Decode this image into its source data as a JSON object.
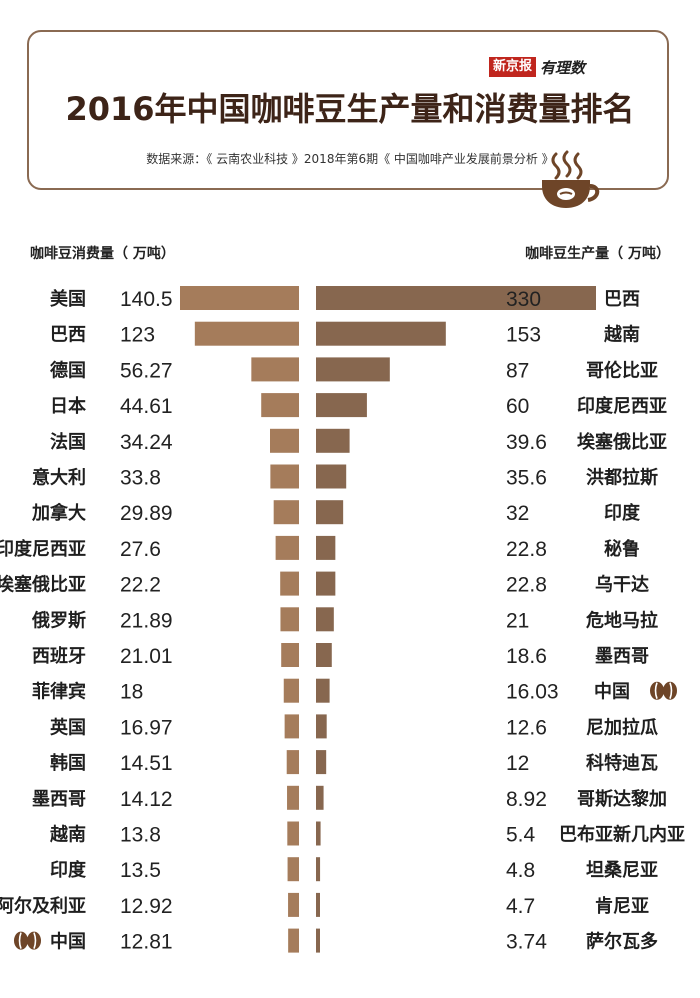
{
  "header": {
    "brand_name": "新京报",
    "brand_script": "有理数",
    "title": "2016年中国咖啡豆生产量和消费量排名",
    "source": "数据来源：《 云南农业科技 》2018年第6期《 中国咖啡产业发展前景分析 》"
  },
  "colors": {
    "border": "#8a6a52",
    "title": "#3d2418",
    "brand_red": "#c0261e",
    "consumption_bar": "#a57c5b",
    "production_bar": "#87674f",
    "bean": "#6e4528"
  },
  "icons": [
    "coffee-cup-icon",
    "coffee-bean-icon"
  ],
  "chart_data": {
    "type": "bar",
    "layout": "back-to-back horizontal",
    "consumption": {
      "label": "咖啡豆消费量（ 万吨）",
      "countries": [
        "美国",
        "巴西",
        "德国",
        "日本",
        "法国",
        "意大利",
        "加拿大",
        "印度尼西亚",
        "埃塞俄比亚",
        "俄罗斯",
        "西班牙",
        "菲律宾",
        "英国",
        "韩国",
        "墨西哥",
        "越南",
        "印度",
        "阿尔及利亚",
        "中国"
      ],
      "value_labels": [
        "140.5",
        "123",
        "56.27",
        "44.61",
        "34.24",
        "33.8",
        "29.89",
        "27.6",
        "22.2",
        "21.89",
        "21.01",
        "18",
        "16.97",
        "14.51",
        "14.12",
        "13.8",
        "13.5",
        "12.92",
        "12.81"
      ],
      "values": [
        140.5,
        123,
        56.27,
        44.61,
        34.24,
        33.8,
        29.89,
        27.6,
        22.2,
        21.89,
        21.01,
        18,
        16.97,
        14.51,
        14.12,
        13.8,
        13.5,
        12.92,
        12.81
      ],
      "highlight": "中国"
    },
    "production": {
      "label": "咖啡豆生产量（ 万吨）",
      "countries": [
        "巴西",
        "越南",
        "哥伦比亚",
        "印度尼西亚",
        "埃塞俄比亚",
        "洪都拉斯",
        "印度",
        "秘鲁",
        "乌干达",
        "危地马拉",
        "墨西哥",
        "中国",
        "尼加拉瓜",
        "科特迪瓦",
        "哥斯达黎加",
        "巴布亚新几内亚",
        "坦桑尼亚",
        "肯尼亚",
        "萨尔瓦多"
      ],
      "value_labels": [
        "330",
        "153",
        "87",
        "60",
        "39.6",
        "35.6",
        "32",
        "22.8",
        "22.8",
        "21",
        "18.6",
        "16.03",
        "12.6",
        "12",
        "8.92",
        "5.4",
        "4.8",
        "4.7",
        "3.74"
      ],
      "values": [
        330,
        153,
        87,
        60,
        39.6,
        35.6,
        32,
        22.8,
        22.8,
        21,
        18.6,
        16.03,
        12.6,
        12,
        8.92,
        5.4,
        4.8,
        4.7,
        3.74
      ],
      "highlight": "中国"
    }
  }
}
